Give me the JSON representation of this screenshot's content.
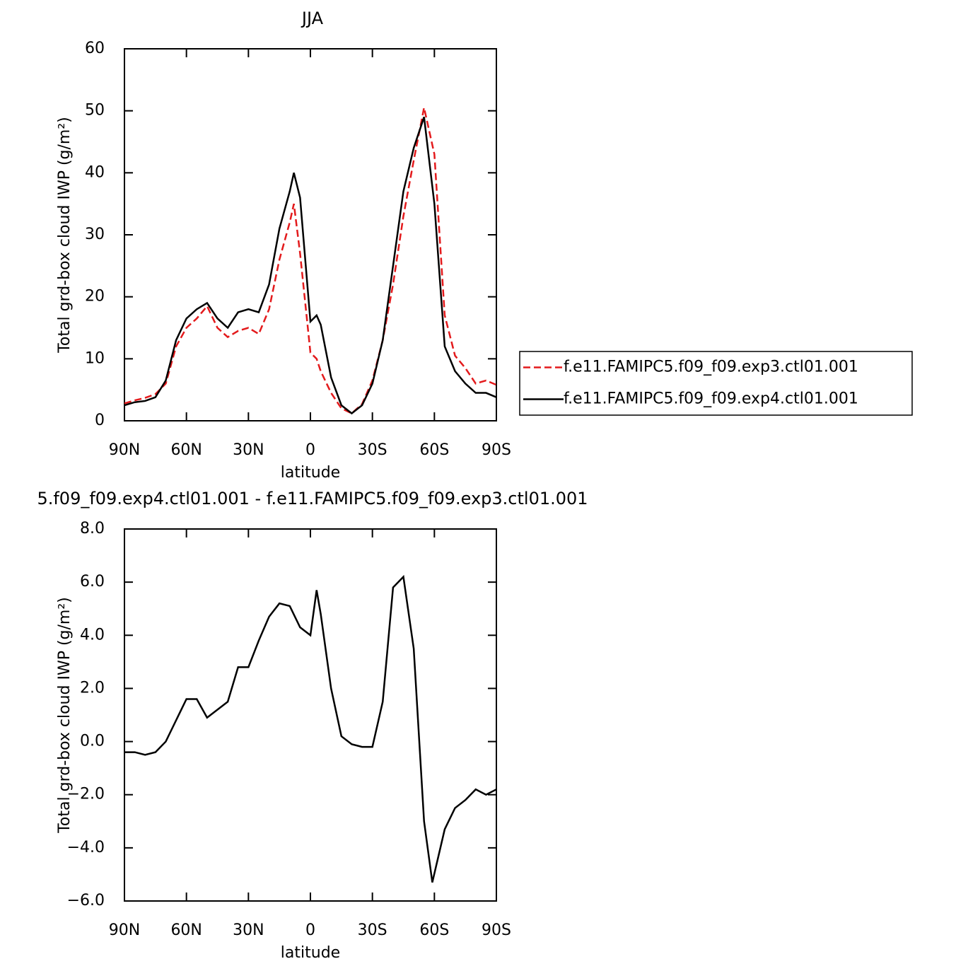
{
  "chart_data": [
    {
      "type": "line",
      "title": "JJA",
      "xlabel": "latitude",
      "ylabel": "Total grd-box cloud IWP (g/m²)",
      "x": [
        90,
        85,
        80,
        75,
        70,
        65,
        60,
        55,
        50,
        45,
        40,
        35,
        30,
        25,
        20,
        15,
        10,
        8,
        5,
        0,
        -3,
        -5,
        -10,
        -15,
        -20,
        -25,
        -30,
        -35,
        -40,
        -45,
        -50,
        -55,
        -60,
        -65,
        -70,
        -75,
        -80,
        -85,
        -90
      ],
      "xlim": [
        90,
        -90
      ],
      "xticks": [
        {
          "value": 90,
          "label": "90N"
        },
        {
          "value": 60,
          "label": "60N"
        },
        {
          "value": 30,
          "label": "30N"
        },
        0,
        {
          "value": -30,
          "label": "30S"
        },
        {
          "value": -60,
          "label": "60S"
        },
        {
          "value": -90,
          "label": "90S"
        }
      ],
      "ylim": [
        0,
        60
      ],
      "yticks": [
        0,
        10,
        20,
        30,
        40,
        50,
        60
      ],
      "legend": "right",
      "series": [
        {
          "name": "f.e11.FAMIPC5.f09_f09.exp3.ctl01.001",
          "color": "#e31a1c",
          "dash": true,
          "values": [
            2.8,
            3.3,
            3.7,
            4.3,
            6,
            12,
            15,
            16.5,
            18.5,
            15,
            13.5,
            14.5,
            15,
            14,
            18,
            26,
            32,
            35,
            27,
            11,
            10,
            8,
            4.5,
            2,
            1.2,
            2.7,
            6.5,
            13,
            22,
            33,
            42,
            50.5,
            43,
            17,
            10.5,
            8.5,
            6,
            6.5,
            5.8
          ]
        },
        {
          "name": "f.e11.FAMIPC5.f09_f09.exp4.ctl01.001",
          "color": "#000000",
          "dash": false,
          "values": [
            2.5,
            3,
            3.2,
            3.8,
            6.5,
            13,
            16.5,
            18,
            19,
            16.5,
            15,
            17.5,
            18,
            17.5,
            22,
            31,
            37,
            40,
            36,
            16,
            17,
            15.5,
            7,
            2.5,
            1.2,
            2.5,
            6,
            13,
            25,
            37,
            44,
            49,
            35,
            12,
            8,
            6,
            4.5,
            4.5,
            3.8
          ]
        }
      ]
    },
    {
      "type": "line",
      "title": "5.f09_f09.exp4.ctl01.001  -  f.e11.FAMIPC5.f09_f09.exp3.ctl01.001",
      "xlabel": "latitude",
      "ylabel": "Total grd-box cloud IWP (g/m²)",
      "x": [
        90,
        85,
        80,
        75,
        70,
        65,
        60,
        55,
        50,
        45,
        40,
        35,
        30,
        25,
        20,
        15,
        10,
        5,
        0,
        -3,
        -5,
        -10,
        -15,
        -20,
        -25,
        -30,
        -35,
        -40,
        -45,
        -50,
        -55,
        -59,
        -65,
        -70,
        -75,
        -80,
        -85,
        -90
      ],
      "xlim": [
        90,
        -90
      ],
      "xticks": [
        {
          "value": 90,
          "label": "90N"
        },
        {
          "value": 60,
          "label": "60N"
        },
        {
          "value": 30,
          "label": "30N"
        },
        0,
        {
          "value": -30,
          "label": "30S"
        },
        {
          "value": -60,
          "label": "60S"
        },
        {
          "value": -90,
          "label": "90S"
        }
      ],
      "ylim": [
        -6,
        8
      ],
      "yticks": [
        {
          "value": -6,
          "label": "−6.0"
        },
        {
          "value": -4,
          "label": "−4.0"
        },
        {
          "value": -2,
          "label": "−2.0"
        },
        {
          "value": 0,
          "label": "0.0"
        },
        {
          "value": 2,
          "label": "2.0"
        },
        {
          "value": 4,
          "label": "4.0"
        },
        {
          "value": 6,
          "label": "6.0"
        },
        {
          "value": 8,
          "label": "8.0"
        }
      ],
      "series": [
        {
          "color": "#000000",
          "dash": false,
          "values": [
            -0.4,
            -0.4,
            -0.5,
            -0.4,
            0,
            0.8,
            1.6,
            1.6,
            0.9,
            1.2,
            1.5,
            2.8,
            2.8,
            3.8,
            4.7,
            5.2,
            5.1,
            4.3,
            4.0,
            5.7,
            4.8,
            2.0,
            0.2,
            -0.1,
            -0.2,
            -0.2,
            1.5,
            5.8,
            6.2,
            3.5,
            -3.0,
            -5.3,
            -3.3,
            -2.5,
            -2.2,
            -1.8,
            -2.0,
            -1.8
          ]
        }
      ]
    }
  ]
}
